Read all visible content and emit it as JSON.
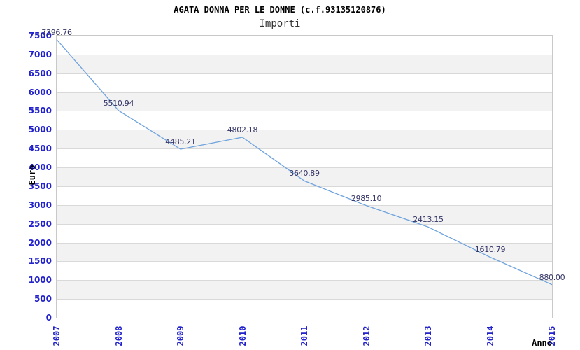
{
  "chart_data": {
    "type": "line",
    "title": "AGATA DONNA PER LE DONNE (c.f.93135120876)",
    "subtitle": "Importi",
    "xlabel": "Anno",
    "ylabel": "Euro",
    "categories": [
      "2007",
      "2008",
      "2009",
      "2010",
      "2011",
      "2012",
      "2013",
      "2014",
      "2015"
    ],
    "series": [
      {
        "name": "Importi",
        "values": [
          7396.76,
          5510.94,
          4485.21,
          4802.18,
          3640.89,
          2985.1,
          2413.15,
          1610.79,
          880.0
        ],
        "point_labels": [
          "7396.76",
          "5510.94",
          "4485.21",
          "4802.18",
          "3640.89",
          "2985.10",
          "2413.15",
          "1610.79",
          "880.00"
        ]
      }
    ],
    "ylim": [
      0,
      7500
    ],
    "ytick_step": 500,
    "yticks": [
      0,
      500,
      1000,
      1500,
      2000,
      2500,
      3000,
      3500,
      4000,
      4500,
      5000,
      5500,
      6000,
      6500,
      7000,
      7500
    ],
    "grid": "horizontal",
    "legend_position": "none",
    "colors": {
      "line": "#6fa3dc",
      "tick_labels": "#2222cc",
      "point_labels": "#333366",
      "band_alt": "#f2f2f2",
      "band_main": "#ffffff",
      "gridline": "#d9d9d9",
      "frame": "#c9c9c9",
      "title": "#000000",
      "subtitle": "#333333",
      "axis_titles": "#000000",
      "background": "#ffffff"
    }
  }
}
